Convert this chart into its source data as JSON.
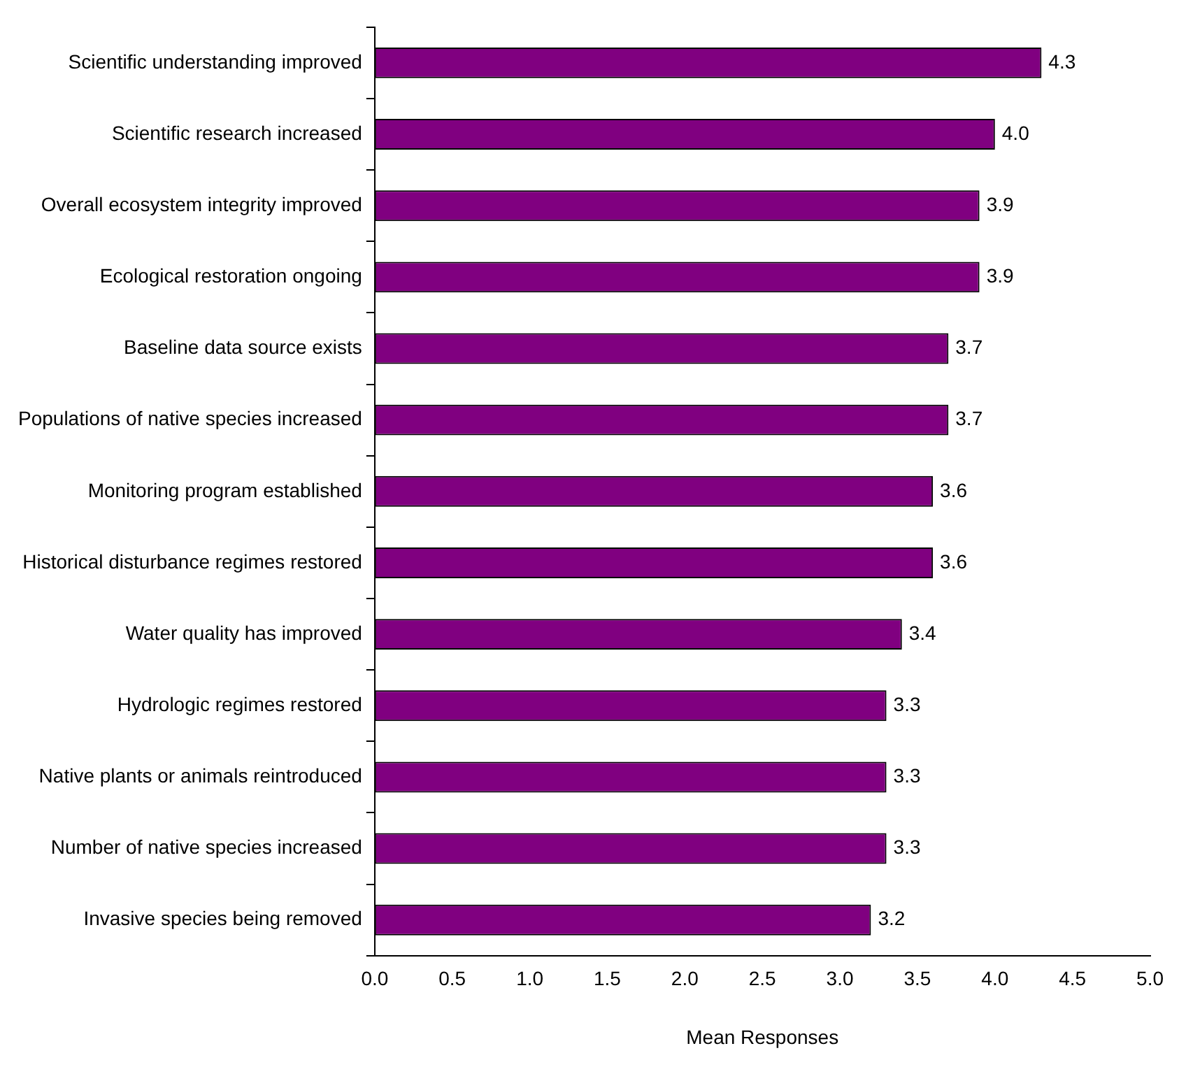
{
  "chart_data": {
    "type": "bar",
    "orientation": "horizontal",
    "xlabel": "Mean Responses",
    "categories": [
      "Scientific understanding improved",
      "Scientific research increased",
      "Overall ecosystem integrity improved",
      "Ecological restoration ongoing",
      "Baseline data source exists",
      "Populations of native species increased",
      "Monitoring program established",
      "Historical disturbance regimes restored",
      "Water quality has improved",
      "Hydrologic regimes restored",
      "Native plants or animals reintroduced",
      "Number of native species increased",
      "Invasive species being removed"
    ],
    "values": [
      4.3,
      4.0,
      3.9,
      3.9,
      3.7,
      3.7,
      3.6,
      3.6,
      3.4,
      3.3,
      3.3,
      3.3,
      3.2
    ],
    "value_labels": [
      "4.3",
      "4.0",
      "3.9",
      "3.9",
      "3.7",
      "3.7",
      "3.6",
      "3.6",
      "3.4",
      "3.3",
      "3.3",
      "3.3",
      "3.2"
    ],
    "color": "#800080",
    "xlim": [
      0,
      5
    ],
    "xticks": [
      {
        "value": 0,
        "label": "0.0"
      },
      {
        "value": 0.5,
        "label": "0.5"
      },
      {
        "value": 1,
        "label": "1.0"
      },
      {
        "value": 1.5,
        "label": "1.5"
      },
      {
        "value": 2,
        "label": "2.0"
      },
      {
        "value": 2.5,
        "label": "2.5"
      },
      {
        "value": 3,
        "label": "3.0"
      },
      {
        "value": 3.5,
        "label": "3.5"
      },
      {
        "value": 4,
        "label": "4.0"
      },
      {
        "value": 4.5,
        "label": "4.5"
      },
      {
        "value": 5,
        "label": "5.0"
      }
    ],
    "grid": false,
    "legend": false
  }
}
